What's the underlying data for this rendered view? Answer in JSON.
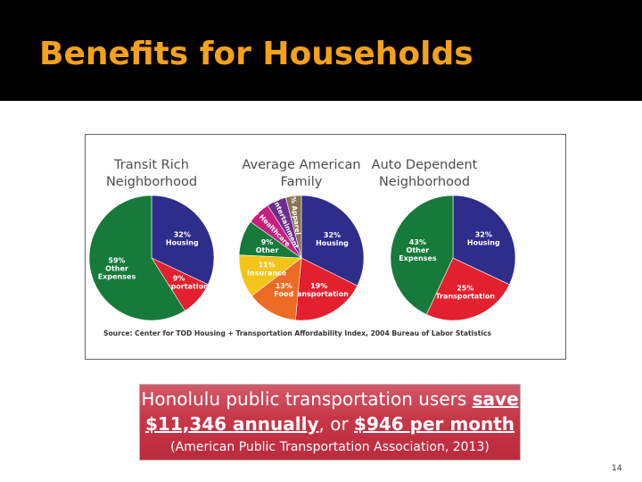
{
  "slide": {
    "title": "Benefits for Households",
    "page_number": "14"
  },
  "callout": {
    "line1_prefix": "Honolulu public transportation users ",
    "line1_emph": "save",
    "line2_emph1": "$11,346 annually",
    "line2_mid": ", or ",
    "line2_emph2": "$946 per month",
    "line3": "(American Public Transportation Association, 2013)"
  },
  "colors": {
    "title": "#f5a11c",
    "housing": "#2e2d8c",
    "transportation": "#e3202d",
    "other": "#167a3a",
    "insurance": "#f5c419",
    "food": "#ed6b25",
    "healthcare": "#c71f7e",
    "entertainment": "#6b2d8f",
    "apparel": "#8a7355"
  },
  "chart_data": [
    {
      "type": "pie",
      "title": "Transit Rich Neighborhood",
      "title_lines": [
        "Transit Rich",
        "Neighborhood"
      ],
      "slices": [
        {
          "name": "Housing",
          "value": 32,
          "label": [
            "32%",
            "Housing"
          ]
        },
        {
          "name": "Transportation",
          "value": 9,
          "label": [
            "9%",
            "Transportation"
          ]
        },
        {
          "name": "Other Expenses",
          "value": 59,
          "label": [
            "59%",
            "Other",
            "Expenses"
          ]
        }
      ]
    },
    {
      "type": "pie",
      "title": "Average American Family",
      "title_lines": [
        "Average American",
        "Family"
      ],
      "slices": [
        {
          "name": "Housing",
          "value": 32,
          "label": [
            "32%",
            "Housing"
          ]
        },
        {
          "name": "Transportation",
          "value": 19,
          "label": [
            "19%",
            "Transportation"
          ]
        },
        {
          "name": "Food",
          "value": 13,
          "label": [
            "13%",
            "Food"
          ]
        },
        {
          "name": "Insurance",
          "value": 11,
          "label": [
            "11%",
            "Insurance"
          ]
        },
        {
          "name": "Other",
          "value": 9,
          "label": [
            "9%",
            "Other"
          ]
        },
        {
          "name": "Healthcare",
          "value": 6,
          "label": [
            "6% Healthcare"
          ]
        },
        {
          "name": "Entertainment",
          "value": 5,
          "label": [
            "5% Entertainment"
          ]
        },
        {
          "name": "Apparel",
          "value": 4,
          "label": [
            "4% Apparel"
          ]
        }
      ]
    },
    {
      "type": "pie",
      "title": "Auto Dependent Neighborhood",
      "title_lines": [
        "Auto Dependent",
        "Neighborhood"
      ],
      "slices": [
        {
          "name": "Housing",
          "value": 32,
          "label": [
            "32%",
            "Housing"
          ]
        },
        {
          "name": "Transportation",
          "value": 25,
          "label": [
            "25%",
            "Transportation"
          ]
        },
        {
          "name": "Other Expenses",
          "value": 43,
          "label": [
            "43%",
            "Other",
            "Expenses"
          ]
        }
      ]
    }
  ],
  "source": "Source: Center for TOD Housing + Transportation Affordability Index, 2004 Bureau of Labor Statistics"
}
